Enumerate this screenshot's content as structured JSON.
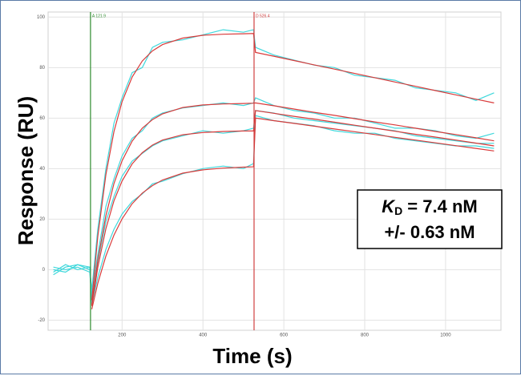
{
  "chart_data": {
    "type": "line",
    "xlabel": "Time (s)",
    "ylabel": "Response (RU)",
    "xlim": [
      17,
      1137
    ],
    "ylim": [
      -24,
      102
    ],
    "xticks": [
      200,
      400,
      600,
      800,
      1000
    ],
    "yticks": [
      -20,
      0,
      20,
      40,
      60,
      80,
      100
    ],
    "grid": true,
    "markers": [
      {
        "x": 121.9,
        "label": "A 121.9",
        "color": "#2e8b2e"
      },
      {
        "x": 526.4,
        "label": "D 526.4",
        "color": "#d04040"
      }
    ],
    "annotation": {
      "symbol": "K",
      "subscript": "D",
      "value": "= 7.4 nM",
      "error": "+/- 0.63 nM"
    },
    "x": [
      30,
      60,
      90,
      120,
      125,
      140,
      160,
      180,
      200,
      225,
      250,
      275,
      300,
      350,
      400,
      450,
      500,
      525,
      530,
      575,
      625,
      675,
      725,
      775,
      825,
      875,
      925,
      975,
      1025,
      1075,
      1120
    ],
    "series": [
      {
        "color": "#40d8dc",
        "values": [
          -2,
          1,
          2,
          0,
          -8,
          16,
          40,
          58,
          68,
          78,
          80,
          88,
          90,
          91,
          93,
          95,
          94,
          95,
          88,
          85,
          83,
          81,
          80,
          77,
          76,
          75,
          72,
          71,
          70,
          67,
          70
        ]
      },
      {
        "color": "#40d8dc",
        "values": [
          0,
          -1,
          2,
          1,
          -10,
          6,
          25,
          36,
          45,
          52,
          55,
          60,
          62,
          64,
          65,
          66,
          65,
          66,
          68,
          65,
          63,
          62,
          60,
          60,
          58,
          56,
          56,
          55,
          53,
          52,
          54
        ]
      },
      {
        "color": "#40d8dc",
        "values": [
          1,
          0,
          1,
          -1,
          -12,
          3,
          19,
          29,
          37,
          43,
          46,
          49,
          51,
          53,
          55,
          54,
          55,
          56,
          63,
          62,
          60,
          59,
          58,
          57,
          56,
          55,
          53,
          52,
          51,
          50,
          50
        ]
      },
      {
        "color": "#40d8dc",
        "values": [
          -1,
          2,
          0,
          1,
          -14,
          -3,
          8,
          16,
          22,
          27,
          30,
          34,
          35,
          38,
          40,
          41,
          40,
          42,
          61,
          59,
          58,
          57,
          55,
          54,
          54,
          52,
          51,
          50,
          49,
          49,
          48
        ]
      },
      {
        "color": "#d93a3a",
        "values": [
          null,
          null,
          null,
          null,
          -12.1,
          13.1,
          37.6,
          54.7,
          66.5,
          76.3,
          82.6,
          86.6,
          89.1,
          91.7,
          92.8,
          93.2,
          93.4,
          93.5,
          86,
          84.5,
          82.8,
          81.1,
          79.4,
          77.7,
          76.0,
          74.3,
          72.6,
          70.9,
          69.2,
          67.5,
          66.0
        ]
      },
      {
        "color": "#d93a3a",
        "values": [
          null,
          null,
          null,
          null,
          -13.9,
          3.8,
          21.4,
          34.1,
          43.1,
          50.9,
          56.0,
          59.4,
          61.7,
          64.2,
          65.2,
          65.6,
          65.8,
          65.9,
          66,
          64.9,
          63.6,
          62.3,
          61.1,
          59.8,
          58.5,
          57.3,
          56.0,
          54.7,
          53.5,
          52.2,
          51.0
        ]
      },
      {
        "color": "#d93a3a",
        "values": [
          null,
          null,
          null,
          null,
          -14.4,
          0.9,
          16.2,
          27.3,
          35.1,
          41.9,
          46.3,
          49.3,
          51.3,
          53.4,
          54.3,
          54.7,
          54.9,
          54.9,
          63,
          61.9,
          60.7,
          59.6,
          58.4,
          57.2,
          56.0,
          54.8,
          53.6,
          52.5,
          51.3,
          50.1,
          49.0
        ]
      },
      {
        "color": "#d93a3a",
        "values": [
          null,
          null,
          null,
          null,
          -15.7,
          -5.4,
          5.4,
          13.7,
          20.1,
          26.1,
          30.3,
          33.3,
          35.5,
          38.2,
          39.5,
          40.2,
          40.6,
          40.7,
          60,
          59.0,
          57.9,
          56.8,
          55.7,
          54.6,
          53.5,
          52.4,
          51.3,
          50.2,
          49.1,
          48.0,
          47.0
        ]
      }
    ]
  }
}
